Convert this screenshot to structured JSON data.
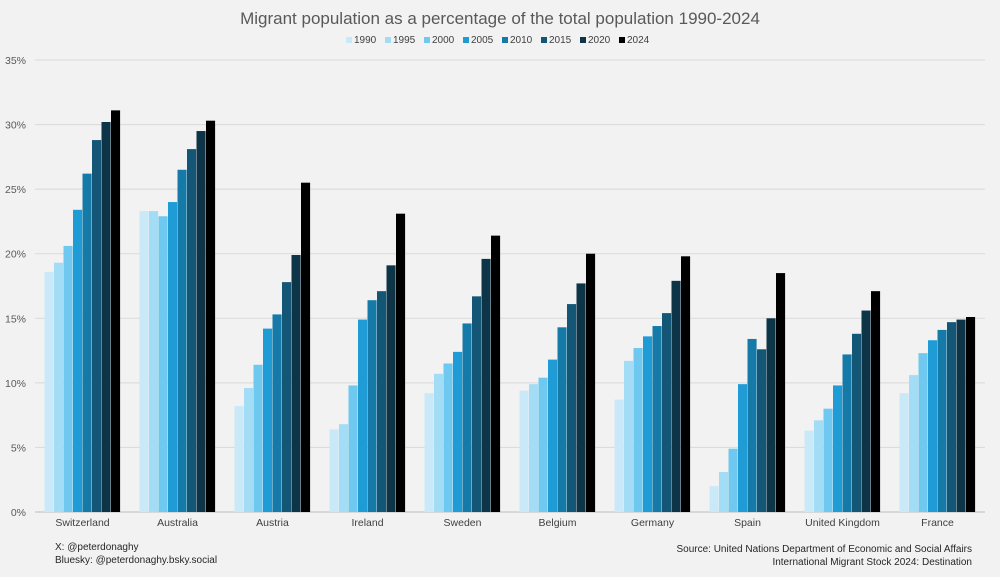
{
  "chart_data": {
    "type": "bar",
    "title": "Migrant population as a percentage of the total population 1990-2024",
    "xlabel": "",
    "ylabel": "",
    "ylim": [
      0,
      35
    ],
    "yticks": [
      "0%",
      "5%",
      "10%",
      "15%",
      "20%",
      "25%",
      "30%",
      "35%"
    ],
    "ytick_values": [
      0,
      5,
      10,
      15,
      20,
      25,
      30,
      35
    ],
    "grid": true,
    "legend_position": "top-center",
    "categories": [
      "Switzerland",
      "Australia",
      "Austria",
      "Ireland",
      "Sweden",
      "Belgium",
      "Germany",
      "Spain",
      "United Kingdom",
      "France"
    ],
    "series": [
      {
        "name": "1990",
        "color": "#c9e9f8",
        "values": [
          18.6,
          23.3,
          8.2,
          6.4,
          9.2,
          9.4,
          8.7,
          2.0,
          6.3,
          9.2
        ]
      },
      {
        "name": "1995",
        "color": "#a3dcf5",
        "values": [
          19.3,
          23.3,
          9.6,
          6.8,
          10.7,
          9.9,
          11.7,
          3.1,
          7.1,
          10.6
        ]
      },
      {
        "name": "2000",
        "color": "#6ec8ef",
        "values": [
          20.6,
          22.9,
          11.4,
          9.8,
          11.5,
          10.4,
          12.7,
          4.9,
          8.0,
          12.3
        ]
      },
      {
        "name": "2005",
        "color": "#1f9bd6",
        "values": [
          23.4,
          24.0,
          14.2,
          14.9,
          12.4,
          11.8,
          13.6,
          9.9,
          9.8,
          13.3
        ]
      },
      {
        "name": "2010",
        "color": "#157aa8",
        "values": [
          26.2,
          26.5,
          15.3,
          16.4,
          14.6,
          14.3,
          14.4,
          13.4,
          12.2,
          14.1
        ]
      },
      {
        "name": "2015",
        "color": "#145675",
        "values": [
          28.8,
          28.1,
          17.8,
          17.1,
          16.7,
          16.1,
          15.4,
          12.6,
          13.8,
          14.7
        ]
      },
      {
        "name": "2020",
        "color": "#0e3448",
        "values": [
          30.2,
          29.5,
          19.9,
          19.1,
          19.6,
          17.7,
          17.9,
          15.0,
          15.6,
          14.9
        ]
      },
      {
        "name": "2024",
        "color": "#000000",
        "values": [
          31.1,
          30.3,
          25.5,
          23.1,
          21.4,
          20.0,
          19.8,
          18.5,
          17.1,
          15.1
        ]
      }
    ]
  },
  "credits": {
    "x_handle": "X: @peterdonaghy",
    "bluesky_handle": "Bluesky: @peterdonaghy.bsky.social",
    "source_line1": "Source: United Nations Department of Economic and Social Affairs",
    "source_line2": "International Migrant Stock 2024: Destination"
  }
}
